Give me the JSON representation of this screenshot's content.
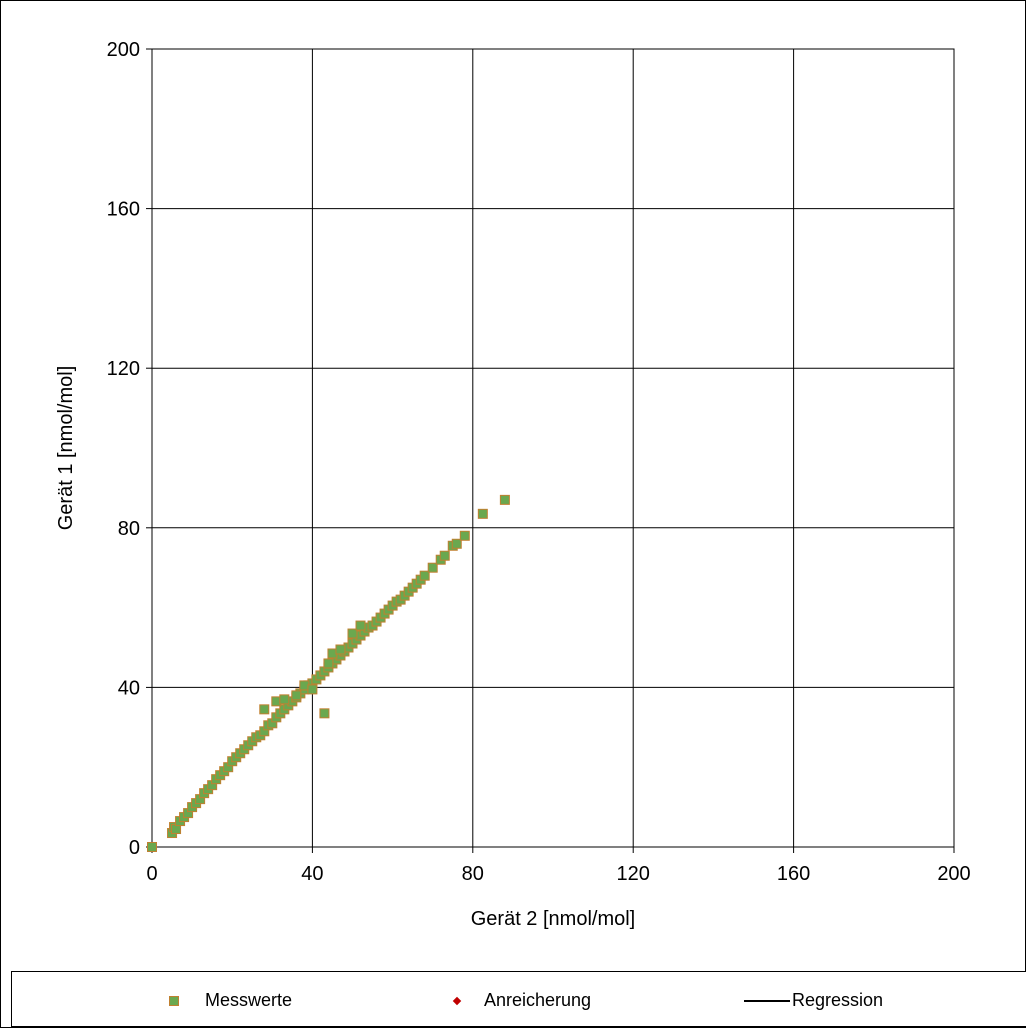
{
  "chart_data": {
    "type": "scatter",
    "xlabel": "Gerät 2 [nmol/mol]",
    "ylabel": "Gerät 1 [nmol/mol]",
    "xlim": [
      0,
      200
    ],
    "ylim": [
      0,
      200
    ],
    "xticks": [
      "0",
      "40",
      "80",
      "120",
      "160",
      "200"
    ],
    "yticks": [
      "0",
      "40",
      "80",
      "120",
      "160",
      "200"
    ],
    "grid": true,
    "legend_position": "bottom",
    "series": [
      {
        "name": "Messwerte",
        "marker": "square",
        "color": "#6aa84f",
        "edge_color": "#c08030",
        "x": [
          0,
          5,
          5.5,
          6,
          7,
          8,
          9,
          10,
          11,
          12,
          13,
          14,
          15,
          16,
          17,
          18,
          19,
          20,
          21,
          22,
          23,
          24,
          25,
          26,
          27,
          28,
          29,
          30,
          31,
          32,
          33,
          34,
          35,
          36,
          37,
          38,
          39,
          40,
          41,
          42,
          43,
          44,
          45,
          46,
          47,
          48,
          49,
          50,
          51,
          52,
          53,
          54,
          55,
          56,
          57,
          58,
          59,
          60,
          61,
          62,
          63,
          64,
          65,
          66,
          67,
          68,
          70,
          72,
          73,
          75,
          76,
          78,
          82.5,
          88,
          28,
          31,
          33,
          36,
          38,
          43,
          45,
          50,
          52,
          40,
          44,
          47
        ],
        "y": [
          0,
          3.5,
          5,
          4.5,
          6.5,
          7.5,
          8.5,
          10,
          11,
          12,
          13.5,
          14.5,
          15.5,
          17,
          18,
          19,
          20,
          21.5,
          22.5,
          23.5,
          24.5,
          25.5,
          26.5,
          27.5,
          28,
          29,
          30.5,
          31,
          32.5,
          33.5,
          34.5,
          35.5,
          36.5,
          37.5,
          38.5,
          39.5,
          40.5,
          41,
          42,
          43,
          44,
          45,
          46,
          47,
          48,
          49,
          50,
          51,
          52,
          53,
          54,
          55,
          55.5,
          56.5,
          57.5,
          58.5,
          59.5,
          60.5,
          61.5,
          62,
          63,
          64,
          65,
          66,
          67,
          68,
          70,
          72,
          73,
          75.5,
          76,
          78,
          83.5,
          87,
          34.5,
          36.5,
          37,
          38,
          40.5,
          33.5,
          48.5,
          53.5,
          55.5,
          39.5,
          46,
          49.5
        ]
      },
      {
        "name": "Anreicherung",
        "marker": "diamond",
        "color": "#c00000",
        "x": [],
        "y": []
      },
      {
        "name": "Regression",
        "marker": "line",
        "color": "#000000",
        "x": [],
        "y": []
      }
    ]
  }
}
